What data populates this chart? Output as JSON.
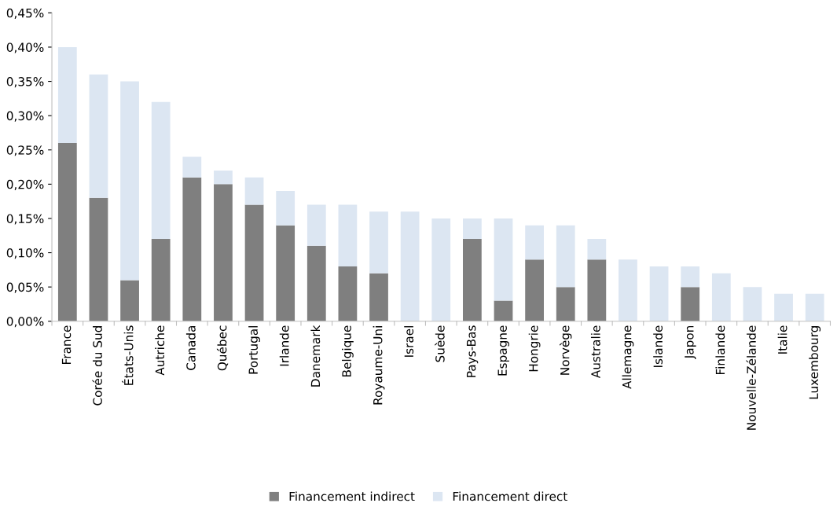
{
  "chart_data": {
    "type": "bar",
    "stacked": true,
    "categories": [
      "France",
      "Corée du Sud",
      "États-Unis",
      "Autriche",
      "Canada",
      "Québec",
      "Portugal",
      "Irlande",
      "Danemark",
      "Belgique",
      "Royaume-Uni",
      "Israel",
      "Suède",
      "Pays-Bas",
      "Espagne",
      "Hongrie",
      "Norvège",
      "Australie",
      "Allemagne",
      "Islande",
      "Japon",
      "Finlande",
      "Nouvelle-Zélande",
      "Italie",
      "Luxembourg"
    ],
    "series": [
      {
        "name": "Financement indirect",
        "color": "#7f7f7f",
        "values": [
          0.26,
          0.18,
          0.06,
          0.12,
          0.21,
          0.2,
          0.17,
          0.14,
          0.11,
          0.08,
          0.07,
          0,
          0,
          0.12,
          0.03,
          0.09,
          0.05,
          0.09,
          0,
          0,
          0.05,
          0,
          0,
          0,
          0
        ]
      },
      {
        "name": "Financement direct",
        "color": "#dce6f2",
        "values": [
          0.14,
          0.18,
          0.29,
          0.2,
          0.03,
          0.02,
          0.04,
          0.05,
          0.06,
          0.09,
          0.09,
          0.16,
          0.15,
          0.03,
          0.12,
          0.05,
          0.09,
          0.03,
          0.09,
          0.08,
          0.03,
          0.07,
          0.05,
          0.04,
          0.04
        ]
      }
    ],
    "ylim": [
      0,
      0.45
    ],
    "yticks": [
      {
        "value": 0,
        "label": "0,00%"
      },
      {
        "value": 0.05,
        "label": "0,05%"
      },
      {
        "value": 0.1,
        "label": "0,10%"
      },
      {
        "value": 0.15,
        "label": "0,15%"
      },
      {
        "value": 0.2,
        "label": "0,20%"
      },
      {
        "value": 0.25,
        "label": "0,25%"
      },
      {
        "value": 0.3,
        "label": "0,30%"
      },
      {
        "value": 0.35,
        "label": "0,35%"
      },
      {
        "value": 0.4,
        "label": "0,40%"
      },
      {
        "value": 0.45,
        "label": "0,45%"
      }
    ],
    "grid": false,
    "legend": "bottom"
  }
}
